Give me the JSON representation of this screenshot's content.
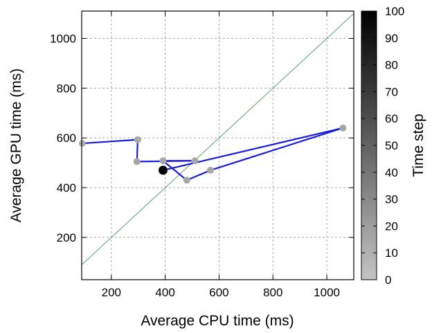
{
  "chart_data": {
    "type": "scatter",
    "xlabel": "Average CPU time (ms)",
    "ylabel": "Average GPU time (ms)",
    "xlim": [
      90,
      1100
    ],
    "ylim": [
      30,
      1110
    ],
    "xticks": [
      200,
      400,
      600,
      800,
      1000
    ],
    "yticks": [
      200,
      400,
      600,
      800,
      1000
    ],
    "grid": true,
    "reference_line": {
      "type": "y=x",
      "color": "#5aa06a"
    },
    "path_color": "#1a1adc",
    "colorbar": {
      "label": "Time step",
      "min": 0,
      "max": 100,
      "ticks": [
        0,
        10,
        20,
        30,
        40,
        50,
        60,
        70,
        80,
        90,
        100
      ],
      "colors": [
        "#c4c4c4",
        "#000000"
      ]
    },
    "series": [
      {
        "values": [
          {
            "x": 92,
            "y": 578,
            "t": 10
          },
          {
            "x": 298,
            "y": 593,
            "t": 15
          },
          {
            "x": 295,
            "y": 505,
            "t": 15
          },
          {
            "x": 510,
            "y": 508,
            "t": 15
          },
          {
            "x": 392,
            "y": 508,
            "t": 15
          },
          {
            "x": 480,
            "y": 430,
            "t": 15
          },
          {
            "x": 568,
            "y": 470,
            "t": 15
          },
          {
            "x": 1060,
            "y": 640,
            "t": 15
          },
          {
            "x": 392,
            "y": 470,
            "t": 100
          }
        ]
      }
    ]
  }
}
